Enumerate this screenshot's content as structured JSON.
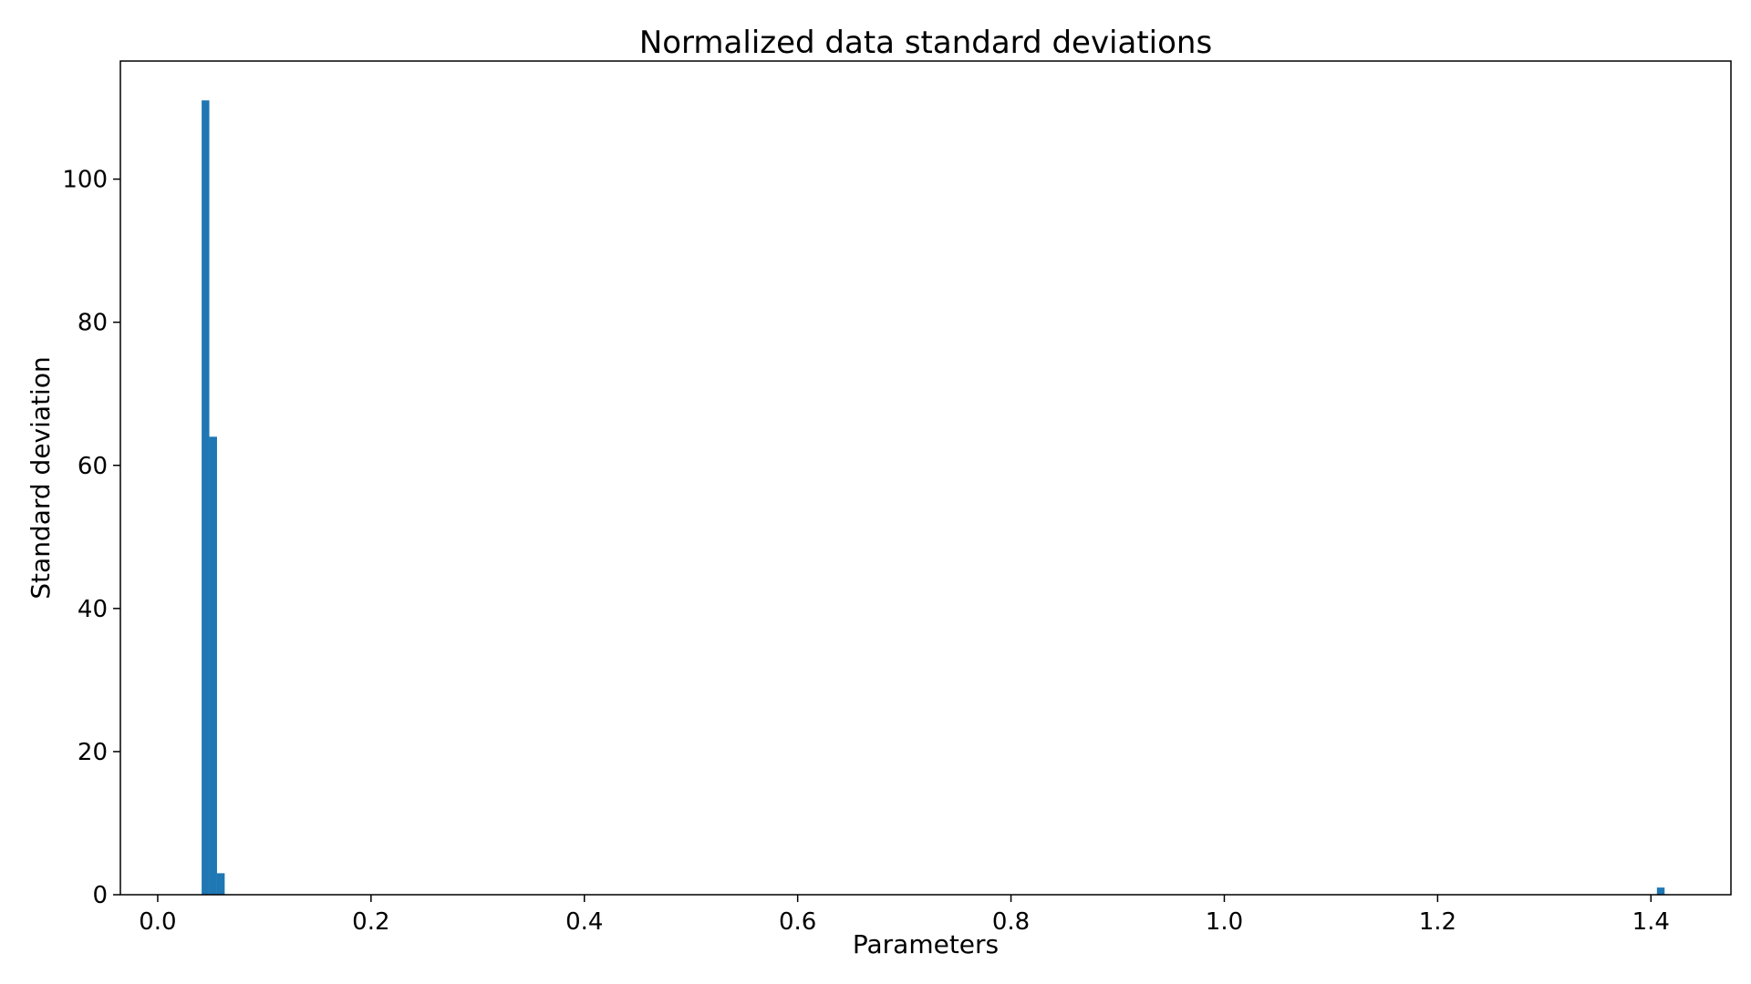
{
  "chart_data": {
    "type": "bar",
    "title": "Normalized data standard deviations",
    "xlabel": "Parameters",
    "ylabel": "Standard deviation",
    "xlim": [
      -0.035,
      1.475
    ],
    "ylim": [
      0,
      116.5
    ],
    "xticks": [
      "0.0",
      "0.2",
      "0.4",
      "0.6",
      "0.8",
      "1.0",
      "1.2",
      "1.4"
    ],
    "yticks": [
      "0",
      "20",
      "40",
      "60",
      "80",
      "100"
    ],
    "grid": false,
    "bin_width": 0.0072,
    "bars": [
      {
        "x": 0.0412,
        "value": 111
      },
      {
        "x": 0.0484,
        "value": 64
      },
      {
        "x": 0.0556,
        "value": 3
      },
      {
        "x": 1.4056,
        "value": 1
      }
    ],
    "color": "#1f77b4"
  }
}
